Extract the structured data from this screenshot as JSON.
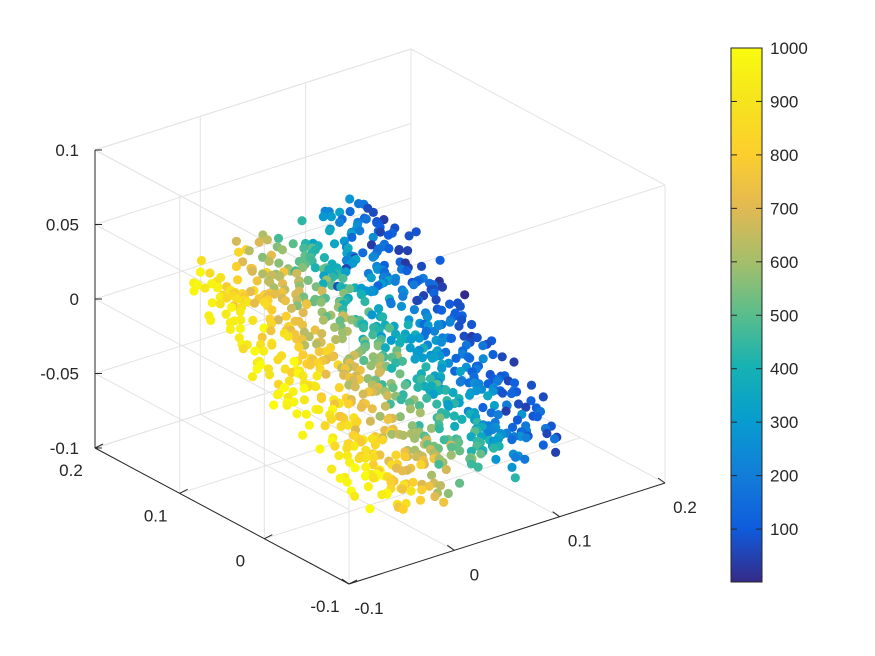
{
  "chart_data": {
    "type": "scatter",
    "title": "",
    "xlabel": "",
    "ylabel": "",
    "zlabel": "",
    "xlim": [
      -0.1,
      0.2
    ],
    "ylim": [
      -0.1,
      0.2
    ],
    "zlim": [
      -0.1,
      0.1
    ],
    "xticks": [
      "-0.1",
      "0",
      "0.1",
      "0.2"
    ],
    "yticks": [
      "-0.1",
      "0",
      "0.1",
      "0.2"
    ],
    "zticks": [
      "-0.1",
      "-0.05",
      "0",
      "0.05",
      "0.1"
    ],
    "grid": true,
    "box": true,
    "colormap": "parula",
    "colorbar": {
      "location": "right",
      "range": [
        1,
        1000
      ],
      "ticks": [
        "100",
        "200",
        "300",
        "400",
        "500",
        "600",
        "700",
        "800",
        "900",
        "1000"
      ]
    },
    "series": [
      {
        "color_range": [
          1,
          1000
        ],
        "points": [
          {
            "x": 0.05,
            "y": -0.05,
            "z": 0.045,
            "c": 5
          },
          {
            "x": 0.05,
            "y": -0.02,
            "z": 0.045,
            "c": 15
          },
          {
            "x": 0.05,
            "y": 0.02,
            "z": 0.045,
            "c": 25
          },
          {
            "x": 0.05,
            "y": 0.06,
            "z": 0.045,
            "c": 35
          },
          {
            "x": 0.05,
            "y": 0.08,
            "z": 0.03,
            "c": 45
          },
          {
            "x": 0.05,
            "y": 0.09,
            "z": 0.02,
            "c": 55
          },
          {
            "x": 0.05,
            "y": 0.1,
            "z": 0.005,
            "c": 65
          }
        ]
      }
    ],
    "generated_cloud": {
      "note": "",
      "slabs": 12,
      "points_per_slab": 75
    }
  }
}
